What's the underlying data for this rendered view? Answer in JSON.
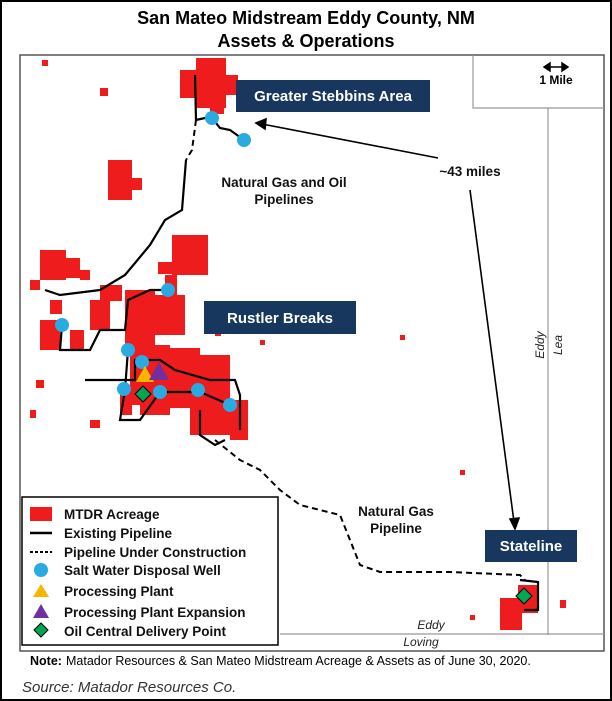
{
  "title": [
    "San Mateo Midstream Eddy County, NM",
    "Assets & Operations"
  ],
  "scale_label": "1 Mile",
  "areas": [
    "Greater Stebbins Area",
    "Rustler Breaks",
    "Stateline"
  ],
  "annotations": {
    "pipelines_north": [
      "Natural Gas and Oil",
      "Pipelines"
    ],
    "distance": "~43 miles",
    "pipeline_south": [
      "Natural Gas",
      "Pipeline"
    ]
  },
  "counties": {
    "eddy_vertical": "Eddy",
    "lea": "Lea",
    "eddy_south": "Eddy",
    "loving": "Loving"
  },
  "legend": [
    "MTDR Acreage",
    "Existing Pipeline",
    "Pipeline Under Construction",
    "Salt Water Disposal Well",
    "Processing Plant",
    "Processing Plant Expansion",
    "Oil Central Delivery Point"
  ],
  "note": {
    "label": "Note:",
    "text": "Matador Resources & San Mateo Midstream Acreage & Assets as of June 30, 2020."
  },
  "source": "Source: Matador Resources Co."
}
